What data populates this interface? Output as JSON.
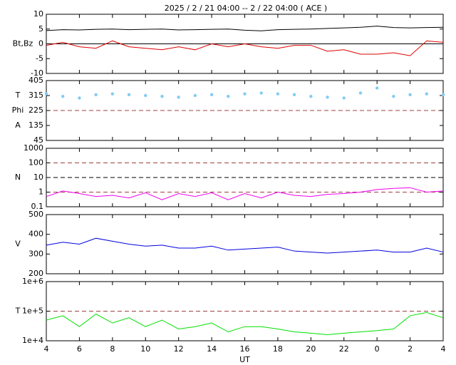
{
  "title": "2025 /  2 / 21   04:00 -- 2 / 22   04:00 ( ACE )",
  "chart_data": [
    {
      "type": "line",
      "ylabels": [
        "Bt,Bz"
      ],
      "ylim": [
        -10,
        10
      ],
      "yticks": [
        -10,
        -5,
        0,
        5,
        10
      ],
      "hlines": [
        {
          "value": 0,
          "color": "#000000",
          "dash": false
        }
      ],
      "x": [
        4,
        5,
        6,
        7,
        8,
        9,
        10,
        11,
        12,
        13,
        14,
        15,
        16,
        17,
        18,
        19,
        20,
        21,
        22,
        23,
        24,
        25,
        26,
        27,
        28
      ],
      "series": [
        {
          "name": "Bt",
          "color": "#000000",
          "values": [
            4.5,
            4.8,
            4.7,
            4.9,
            5,
            4.8,
            4.9,
            5,
            4.7,
            4.8,
            4.9,
            5,
            4.6,
            4.4,
            4.8,
            4.9,
            5,
            5.2,
            5.4,
            5.6,
            6,
            5.5,
            5.4,
            5.5,
            5.6
          ]
        },
        {
          "name": "Bz",
          "color": "#e00000",
          "values": [
            -0.5,
            0.5,
            -1,
            -1.5,
            1,
            -1,
            -1.5,
            -2,
            -1,
            -2,
            0,
            -1,
            0,
            -1,
            -1.5,
            -0.5,
            -0.5,
            -2.5,
            -2,
            -3.5,
            -3.5,
            -3,
            -4,
            1,
            0.5
          ]
        }
      ]
    },
    {
      "type": "scatter",
      "ylabels": [
        "T",
        "Phi",
        "A"
      ],
      "ylim": [
        45,
        405
      ],
      "yticks": [
        45,
        135,
        225,
        315,
        405
      ],
      "hlines": [
        {
          "value": 225,
          "color": "#a04040",
          "dash": true
        }
      ],
      "x": [
        4,
        5,
        6,
        7,
        8,
        9,
        10,
        11,
        12,
        13,
        14,
        15,
        16,
        17,
        18,
        19,
        20,
        21,
        22,
        23,
        24,
        25,
        26,
        27,
        28
      ],
      "series": [
        {
          "name": "Phi",
          "color": "#80ccf4",
          "values": [
            325,
            310,
            300,
            320,
            325,
            320,
            315,
            310,
            305,
            315,
            320,
            310,
            325,
            330,
            325,
            320,
            310,
            305,
            300,
            330,
            360,
            310,
            320,
            325,
            320
          ]
        }
      ]
    },
    {
      "type": "line",
      "log": true,
      "ylabels": [
        "N"
      ],
      "ylim": [
        0.1,
        1000
      ],
      "yticks": [
        0.1,
        1,
        10,
        100,
        1000
      ],
      "hlines": [
        {
          "value": 1,
          "color": "#a04040",
          "dash": true
        },
        {
          "value": 10,
          "color": "#000000",
          "dash": true
        },
        {
          "value": 100,
          "color": "#a04040",
          "dash": true
        }
      ],
      "x": [
        4,
        5,
        6,
        7,
        8,
        9,
        10,
        11,
        12,
        13,
        14,
        15,
        16,
        17,
        18,
        19,
        20,
        21,
        22,
        23,
        24,
        25,
        26,
        27,
        28
      ],
      "series": [
        {
          "name": "N",
          "color": "#f000f0",
          "values": [
            0.5,
            1.2,
            0.8,
            0.5,
            0.6,
            0.4,
            0.9,
            0.3,
            0.8,
            0.5,
            0.9,
            0.3,
            0.8,
            0.4,
            1,
            0.6,
            0.5,
            0.7,
            0.8,
            1,
            1.5,
            1.8,
            2,
            1,
            1.2
          ]
        }
      ]
    },
    {
      "type": "line",
      "ylabels": [
        "V"
      ],
      "ylim": [
        200,
        500
      ],
      "yticks": [
        200,
        300,
        400,
        500
      ],
      "hlines": [],
      "x": [
        4,
        5,
        6,
        7,
        8,
        9,
        10,
        11,
        12,
        13,
        14,
        15,
        16,
        17,
        18,
        19,
        20,
        21,
        22,
        23,
        24,
        25,
        26,
        27,
        28
      ],
      "series": [
        {
          "name": "V",
          "color": "#0000e0",
          "values": [
            345,
            360,
            350,
            380,
            365,
            350,
            340,
            345,
            330,
            330,
            340,
            320,
            325,
            330,
            335,
            315,
            310,
            305,
            310,
            315,
            320,
            310,
            310,
            330,
            310
          ]
        }
      ]
    },
    {
      "type": "line",
      "log": true,
      "ylabels": [
        "T"
      ],
      "ylim": [
        10000,
        1000000
      ],
      "yticks": [
        {
          "value": 10000,
          "label": "1e+4"
        },
        {
          "value": 100000,
          "label": "1e+5"
        },
        {
          "value": 1000000,
          "label": "1e+6"
        }
      ],
      "hlines": [
        {
          "value": 100000,
          "color": "#a04040",
          "dash": true
        }
      ],
      "xlabel": "UT",
      "xlim": [
        4,
        28
      ],
      "xticks": [
        4,
        6,
        8,
        10,
        12,
        14,
        16,
        18,
        20,
        22,
        {
          "value": 24,
          "label": "0"
        },
        {
          "value": 26,
          "label": "2"
        },
        {
          "value": 28,
          "label": "4"
        }
      ],
      "x": [
        4,
        5,
        6,
        7,
        8,
        9,
        10,
        11,
        12,
        13,
        14,
        15,
        16,
        17,
        18,
        19,
        20,
        21,
        22,
        23,
        24,
        25,
        26,
        27,
        28
      ],
      "series": [
        {
          "name": "T",
          "color": "#00e000",
          "values": [
            50000,
            70000,
            30000,
            80000,
            40000,
            60000,
            30000,
            50000,
            25000,
            30000,
            40000,
            20000,
            30000,
            30000,
            25000,
            20000,
            18000,
            16000,
            18000,
            20000,
            22000,
            25000,
            70000,
            90000,
            60000
          ]
        }
      ]
    }
  ]
}
